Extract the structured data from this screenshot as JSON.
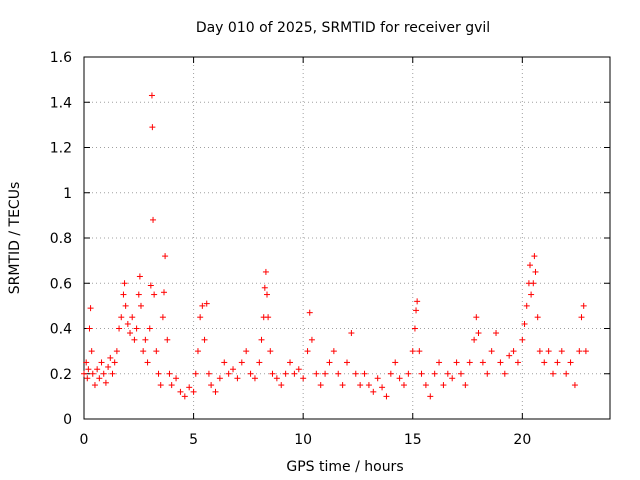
{
  "chart_data": {
    "type": "scatter",
    "title": "Day 010 of 2025, SRMTID for receiver gvil",
    "xlabel": "GPS time / hours",
    "ylabel": "SRMTID / TECUs",
    "xlim": [
      0,
      24
    ],
    "ylim": [
      0,
      1.6
    ],
    "xticks": [
      0,
      5,
      10,
      15,
      20
    ],
    "yticks": [
      0,
      0.2,
      0.4,
      0.6,
      0.8,
      1,
      1.2,
      1.4,
      1.6
    ],
    "xtick_labels": [
      "0",
      "5",
      "10",
      "15",
      "20"
    ],
    "ytick_labels": [
      "0",
      "0.2",
      "0.4",
      "0.6",
      "0.8",
      "1",
      "1.2",
      "1.4",
      "1.6"
    ],
    "grid": true,
    "marker": "+",
    "color": "#ff0000",
    "series": [
      {
        "name": "SRMTID",
        "points": [
          [
            0.0,
            0.2
          ],
          [
            0.1,
            0.25
          ],
          [
            0.15,
            0.18
          ],
          [
            0.2,
            0.22
          ],
          [
            0.25,
            0.4
          ],
          [
            0.3,
            0.49
          ],
          [
            0.35,
            0.3
          ],
          [
            0.4,
            0.2
          ],
          [
            0.5,
            0.15
          ],
          [
            0.6,
            0.22
          ],
          [
            0.7,
            0.18
          ],
          [
            0.8,
            0.25
          ],
          [
            0.9,
            0.2
          ],
          [
            1.0,
            0.16
          ],
          [
            1.1,
            0.23
          ],
          [
            1.2,
            0.27
          ],
          [
            1.3,
            0.2
          ],
          [
            1.4,
            0.25
          ],
          [
            1.5,
            0.3
          ],
          [
            1.6,
            0.4
          ],
          [
            1.7,
            0.45
          ],
          [
            1.8,
            0.55
          ],
          [
            1.85,
            0.6
          ],
          [
            1.9,
            0.5
          ],
          [
            2.0,
            0.42
          ],
          [
            2.1,
            0.38
          ],
          [
            2.2,
            0.45
          ],
          [
            2.3,
            0.35
          ],
          [
            2.4,
            0.4
          ],
          [
            2.5,
            0.55
          ],
          [
            2.55,
            0.63
          ],
          [
            2.6,
            0.5
          ],
          [
            2.7,
            0.3
          ],
          [
            2.8,
            0.35
          ],
          [
            2.9,
            0.25
          ],
          [
            3.0,
            0.4
          ],
          [
            3.05,
            0.59
          ],
          [
            3.1,
            1.43
          ],
          [
            3.12,
            1.29
          ],
          [
            3.15,
            0.88
          ],
          [
            3.2,
            0.55
          ],
          [
            3.3,
            0.3
          ],
          [
            3.4,
            0.2
          ],
          [
            3.5,
            0.15
          ],
          [
            3.6,
            0.45
          ],
          [
            3.65,
            0.56
          ],
          [
            3.7,
            0.72
          ],
          [
            3.8,
            0.35
          ],
          [
            3.9,
            0.2
          ],
          [
            4.0,
            0.15
          ],
          [
            4.2,
            0.18
          ],
          [
            4.4,
            0.12
          ],
          [
            4.6,
            0.1
          ],
          [
            4.8,
            0.14
          ],
          [
            5.0,
            0.12
          ],
          [
            5.1,
            0.2
          ],
          [
            5.2,
            0.3
          ],
          [
            5.3,
            0.45
          ],
          [
            5.4,
            0.5
          ],
          [
            5.5,
            0.35
          ],
          [
            5.6,
            0.51
          ],
          [
            5.7,
            0.2
          ],
          [
            5.8,
            0.15
          ],
          [
            6.0,
            0.12
          ],
          [
            6.2,
            0.18
          ],
          [
            6.4,
            0.25
          ],
          [
            6.6,
            0.2
          ],
          [
            6.8,
            0.22
          ],
          [
            7.0,
            0.18
          ],
          [
            7.2,
            0.25
          ],
          [
            7.4,
            0.3
          ],
          [
            7.6,
            0.2
          ],
          [
            7.8,
            0.18
          ],
          [
            8.0,
            0.25
          ],
          [
            8.1,
            0.35
          ],
          [
            8.2,
            0.45
          ],
          [
            8.25,
            0.58
          ],
          [
            8.3,
            0.65
          ],
          [
            8.35,
            0.55
          ],
          [
            8.4,
            0.45
          ],
          [
            8.5,
            0.3
          ],
          [
            8.6,
            0.2
          ],
          [
            8.8,
            0.18
          ],
          [
            9.0,
            0.15
          ],
          [
            9.2,
            0.2
          ],
          [
            9.4,
            0.25
          ],
          [
            9.6,
            0.2
          ],
          [
            9.8,
            0.22
          ],
          [
            10.0,
            0.18
          ],
          [
            10.2,
            0.3
          ],
          [
            10.3,
            0.47
          ],
          [
            10.4,
            0.35
          ],
          [
            10.6,
            0.2
          ],
          [
            10.8,
            0.15
          ],
          [
            11.0,
            0.2
          ],
          [
            11.2,
            0.25
          ],
          [
            11.4,
            0.3
          ],
          [
            11.6,
            0.2
          ],
          [
            11.8,
            0.15
          ],
          [
            12.0,
            0.25
          ],
          [
            12.2,
            0.38
          ],
          [
            12.4,
            0.2
          ],
          [
            12.6,
            0.15
          ],
          [
            12.8,
            0.2
          ],
          [
            13.0,
            0.15
          ],
          [
            13.2,
            0.12
          ],
          [
            13.4,
            0.18
          ],
          [
            13.6,
            0.14
          ],
          [
            13.8,
            0.1
          ],
          [
            14.0,
            0.2
          ],
          [
            14.2,
            0.25
          ],
          [
            14.4,
            0.18
          ],
          [
            14.6,
            0.15
          ],
          [
            14.8,
            0.2
          ],
          [
            15.0,
            0.3
          ],
          [
            15.1,
            0.4
          ],
          [
            15.15,
            0.48
          ],
          [
            15.2,
            0.52
          ],
          [
            15.3,
            0.3
          ],
          [
            15.4,
            0.2
          ],
          [
            15.6,
            0.15
          ],
          [
            15.8,
            0.1
          ],
          [
            16.0,
            0.2
          ],
          [
            16.2,
            0.25
          ],
          [
            16.4,
            0.15
          ],
          [
            16.6,
            0.2
          ],
          [
            16.8,
            0.18
          ],
          [
            17.0,
            0.25
          ],
          [
            17.2,
            0.2
          ],
          [
            17.4,
            0.15
          ],
          [
            17.6,
            0.25
          ],
          [
            17.8,
            0.35
          ],
          [
            17.9,
            0.45
          ],
          [
            18.0,
            0.38
          ],
          [
            18.2,
            0.25
          ],
          [
            18.4,
            0.2
          ],
          [
            18.6,
            0.3
          ],
          [
            18.8,
            0.38
          ],
          [
            19.0,
            0.25
          ],
          [
            19.2,
            0.2
          ],
          [
            19.4,
            0.28
          ],
          [
            19.6,
            0.3
          ],
          [
            19.8,
            0.25
          ],
          [
            20.0,
            0.35
          ],
          [
            20.1,
            0.42
          ],
          [
            20.2,
            0.5
          ],
          [
            20.3,
            0.6
          ],
          [
            20.35,
            0.68
          ],
          [
            20.4,
            0.55
          ],
          [
            20.5,
            0.6
          ],
          [
            20.55,
            0.72
          ],
          [
            20.6,
            0.65
          ],
          [
            20.7,
            0.45
          ],
          [
            20.8,
            0.3
          ],
          [
            21.0,
            0.25
          ],
          [
            21.2,
            0.3
          ],
          [
            21.4,
            0.2
          ],
          [
            21.6,
            0.25
          ],
          [
            21.8,
            0.3
          ],
          [
            22.0,
            0.2
          ],
          [
            22.2,
            0.25
          ],
          [
            22.4,
            0.15
          ],
          [
            22.6,
            0.3
          ],
          [
            22.7,
            0.45
          ],
          [
            22.8,
            0.5
          ],
          [
            22.9,
            0.3
          ]
        ]
      }
    ]
  }
}
